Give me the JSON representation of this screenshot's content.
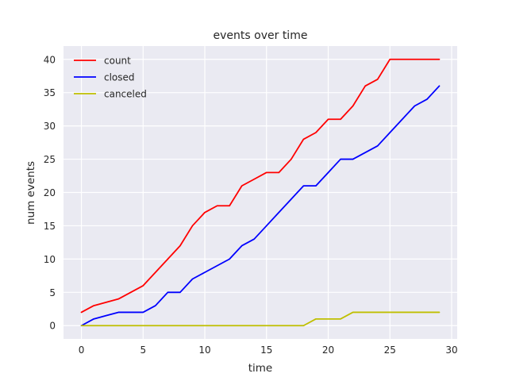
{
  "chart_data": {
    "type": "line",
    "title": "events over time",
    "xlabel": "time",
    "ylabel": "num events",
    "xlim": [
      -1.45,
      30.45
    ],
    "ylim": [
      -2,
      42
    ],
    "xticks": [
      0,
      5,
      10,
      15,
      20,
      25,
      30
    ],
    "yticks": [
      0,
      5,
      10,
      15,
      20,
      25,
      30,
      35,
      40
    ],
    "grid": true,
    "legend_position": "top-left",
    "x": [
      0,
      1,
      2,
      3,
      4,
      5,
      6,
      7,
      8,
      9,
      10,
      11,
      12,
      13,
      14,
      15,
      16,
      17,
      18,
      19,
      20,
      21,
      22,
      23,
      24,
      25,
      26,
      27,
      28,
      29
    ],
    "series": [
      {
        "name": "count",
        "color": "#ff0000",
        "values": [
          2,
          3,
          3.5,
          4,
          5,
          6,
          8,
          10,
          12,
          15,
          17,
          18,
          18,
          21,
          22,
          23,
          23,
          25,
          28,
          29,
          31,
          31,
          33,
          36,
          37,
          40,
          40,
          40,
          40,
          40
        ]
      },
      {
        "name": "closed",
        "color": "#0000ff",
        "values": [
          0,
          1,
          1.5,
          2,
          2,
          2,
          3,
          5,
          5,
          7,
          8,
          9,
          10,
          12,
          13,
          15,
          17,
          19,
          21,
          21,
          23,
          25,
          25,
          26,
          27,
          29,
          31,
          33,
          34,
          36
        ]
      },
      {
        "name": "canceled",
        "color": "#bfbf00",
        "values": [
          0,
          0,
          0,
          0,
          0,
          0,
          0,
          0,
          0,
          0,
          0,
          0,
          0,
          0,
          0,
          0,
          0,
          0,
          0,
          1,
          1,
          1,
          2,
          2,
          2,
          2,
          2,
          2,
          2,
          2
        ]
      }
    ]
  }
}
